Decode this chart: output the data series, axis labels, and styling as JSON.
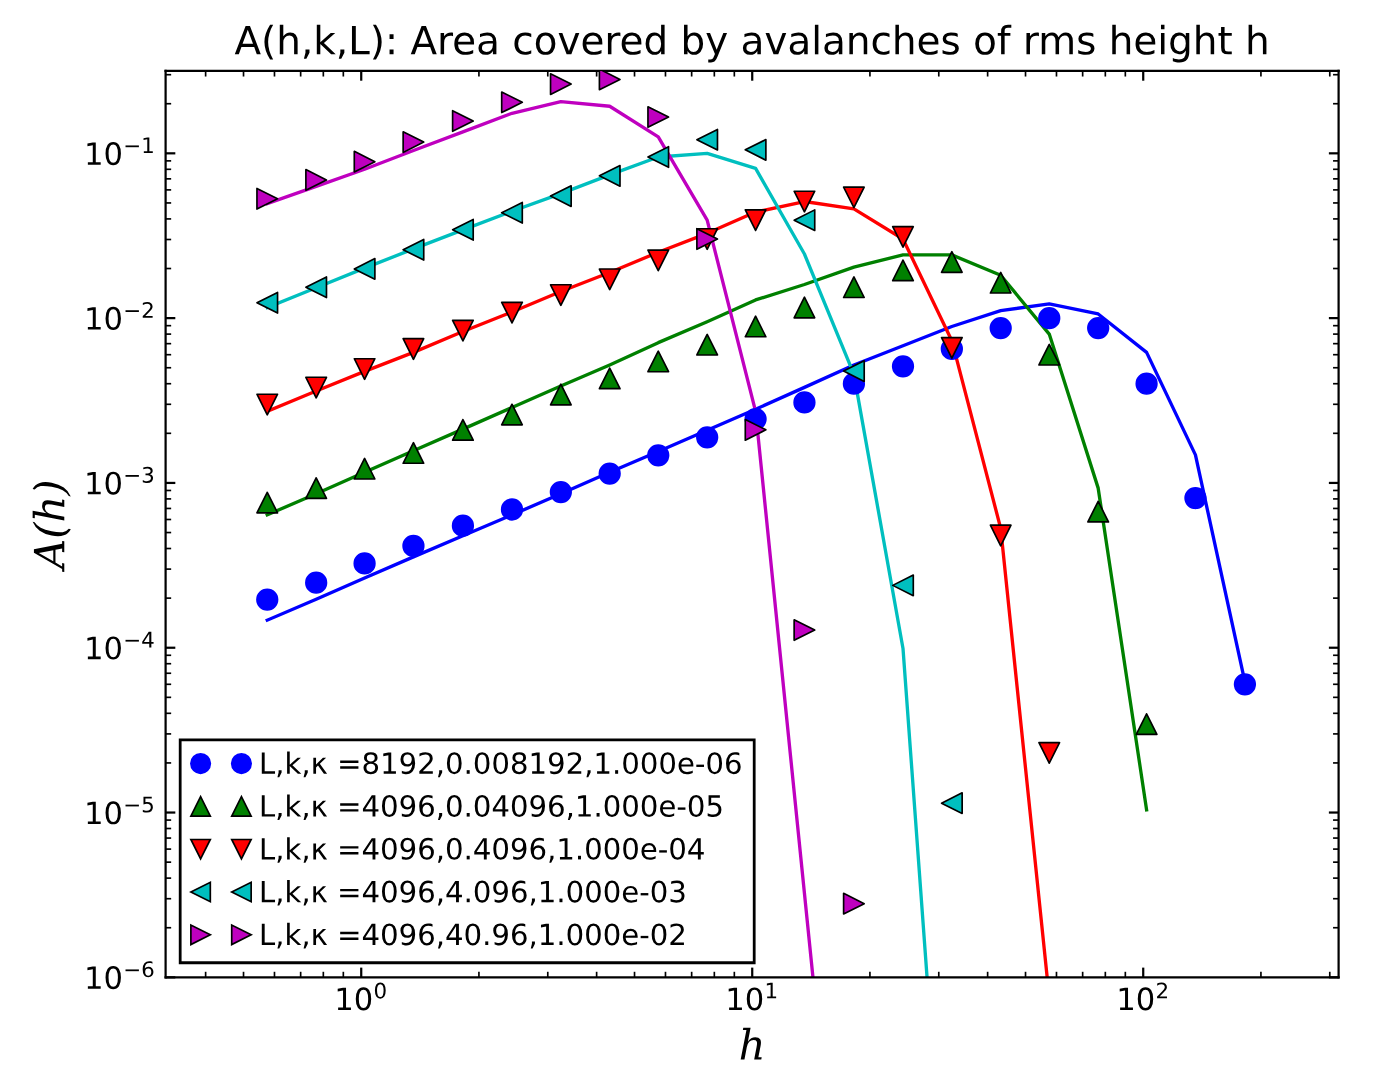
{
  "chart_data": {
    "type": "scatter",
    "title": "A(h,k,L): Area covered by avalanches of rms height h",
    "xlabel": "h",
    "ylabel": "A(h)",
    "log": "xy",
    "xlim": [
      0.316,
      316
    ],
    "ylim": [
      1e-06,
      0.316
    ],
    "xticks": [
      {
        "value": 1,
        "label": "10$^{0}$"
      },
      {
        "value": 10,
        "label": "10$^{1}$"
      },
      {
        "value": 100,
        "label": "10$^{2}$"
      }
    ],
    "yticks": [
      {
        "value": 1e-06,
        "label": "10$^{−6}$"
      },
      {
        "value": 1e-05,
        "label": "10$^{−5}$"
      },
      {
        "value": 0.0001,
        "label": "10$^{−4}$"
      },
      {
        "value": 0.001,
        "label": "10$^{−3}$"
      },
      {
        "value": 0.01,
        "label": "10$^{−2}$"
      },
      {
        "value": 0.1,
        "label": "10$^{−1}$"
      }
    ],
    "grid": false,
    "legend": "bottom left",
    "x": [
      0.575,
      0.767,
      1.02,
      1.36,
      1.82,
      2.43,
      3.24,
      4.32,
      5.75,
      7.67,
      10.2,
      13.6,
      18.2,
      24.3,
      32.4,
      43.2,
      57.5,
      76.7,
      102,
      136,
      182
    ],
    "series": [
      {
        "name": "L,k,κ =8192,0.008192,1.000e-06",
        "color": "#0000ff",
        "marker": "circle",
        "values": [
          0.000196,
          0.000248,
          0.000325,
          0.000415,
          0.00055,
          0.00069,
          0.00088,
          0.00114,
          0.00147,
          0.00189,
          0.00244,
          0.00308,
          0.004,
          0.0051,
          0.0065,
          0.0087,
          0.01,
          0.0087,
          0.004,
          0.00081,
          6e-05
        ]
      },
      {
        "name": "L,k,κ =4096,0.04096,1.000e-05",
        "color": "#008000",
        "marker": "triangle-up",
        "values": [
          0.00076,
          0.00093,
          0.00122,
          0.00152,
          0.0021,
          0.0026,
          0.00344,
          0.00431,
          0.00546,
          0.0069,
          0.0089,
          0.0116,
          0.0154,
          0.0195,
          0.0219,
          0.0164,
          0.006,
          0.00067,
          3.44e-05,
          null,
          null
        ]
      },
      {
        "name": "L,k,κ =4096,0.4096,1.000e-04",
        "color": "#ff0000",
        "marker": "triangle-down",
        "values": [
          0.00299,
          0.00379,
          0.00491,
          0.0065,
          0.0084,
          0.0108,
          0.0138,
          0.0172,
          0.0224,
          0.0302,
          0.0393,
          0.051,
          0.054,
          0.0311,
          0.0066,
          0.00048,
          2.3e-05,
          null,
          null,
          null,
          null
        ]
      },
      {
        "name": "L,k,κ =4096,4.096,1.000e-03",
        "color": "#00bfbf",
        "marker": "triangle-left",
        "values": [
          0.0124,
          0.0154,
          0.0199,
          0.026,
          0.0344,
          0.0436,
          0.055,
          0.073,
          0.095,
          0.121,
          0.105,
          0.0393,
          0.00477,
          0.000239,
          1.14e-05,
          null,
          null,
          null,
          null,
          null,
          null
        ]
      },
      {
        "name": "L,k,κ =4096,40.96,1.000e-02",
        "color": "#bf00bf",
        "marker": "triangle-right",
        "values": [
          0.053,
          0.069,
          0.089,
          0.117,
          0.157,
          0.204,
          0.263,
          0.281,
          0.166,
          0.0302,
          0.0021,
          0.000128,
          2.8e-06,
          null,
          null,
          null,
          null,
          null,
          null,
          null,
          null
        ]
      },
      {
        "type": "line",
        "color": "#0000ff",
        "values": [
          0.000147,
          0.000197,
          0.000265,
          0.000356,
          0.000478,
          0.00064,
          0.00086,
          0.00116,
          0.00155,
          0.00209,
          0.0028,
          0.0038,
          0.0052,
          0.0068,
          0.0089,
          0.0111,
          0.0122,
          0.0106,
          0.0062,
          0.00148,
          6.2e-05
        ]
      },
      {
        "type": "line",
        "color": "#008000",
        "values": [
          0.00064,
          0.00086,
          0.00116,
          0.00157,
          0.00212,
          0.00287,
          0.00387,
          0.0052,
          0.0071,
          0.0095,
          0.0129,
          0.016,
          0.0204,
          0.0242,
          0.0242,
          0.0182,
          0.008,
          0.00093,
          1.04e-05,
          null,
          null
        ]
      },
      {
        "type": "line",
        "color": "#ff0000",
        "x": [
          0.575,
          0.767,
          1.02,
          1.36,
          1.82,
          2.43,
          3.24,
          4.32,
          5.75,
          7.67,
          10.2,
          13.6,
          18.2,
          24.3,
          32.4,
          43.2,
          56.8
        ],
        "values": [
          0.00272,
          0.00361,
          0.00475,
          0.0062,
          0.0083,
          0.0109,
          0.0145,
          0.0189,
          0.0251,
          0.0327,
          0.044,
          0.051,
          0.046,
          0.0302,
          0.0073,
          0.00053,
          1e-06
        ]
      },
      {
        "type": "line",
        "color": "#00bfbf",
        "x": [
          0.575,
          0.767,
          1.02,
          1.36,
          1.82,
          2.43,
          3.24,
          4.32,
          5.75,
          7.67,
          10.2,
          13.6,
          18.2,
          24.3,
          28.0
        ],
        "values": [
          0.0116,
          0.0153,
          0.0201,
          0.0263,
          0.0343,
          0.0445,
          0.057,
          0.074,
          0.095,
          0.1,
          0.081,
          0.0245,
          0.00456,
          9.9e-05,
          1e-06
        ]
      },
      {
        "type": "line",
        "color": "#bf00bf",
        "x": [
          0.575,
          0.767,
          1.02,
          1.36,
          1.82,
          2.43,
          3.24,
          4.32,
          5.75,
          7.67,
          10.2,
          14.3
        ],
        "values": [
          0.0495,
          0.063,
          0.08,
          0.104,
          0.135,
          0.175,
          0.206,
          0.193,
          0.126,
          0.0393,
          0.00272,
          1e-06
        ]
      }
    ]
  }
}
